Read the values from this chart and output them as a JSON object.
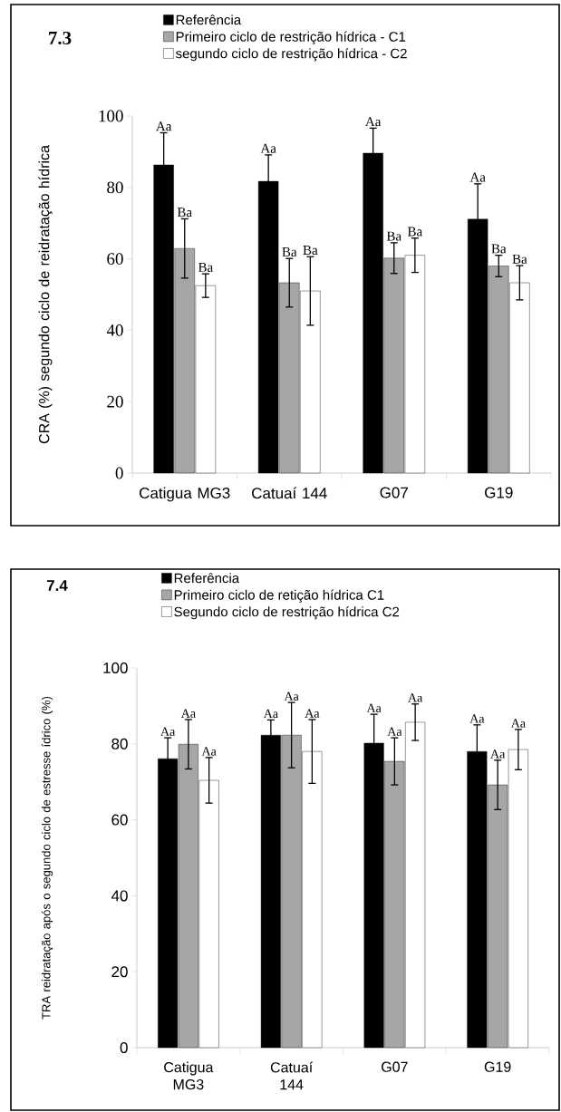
{
  "chart_data": [
    {
      "type": "bar",
      "title": "7.3",
      "ylabel": "CRA (%)  segundo ciclo de  reidratação hídrica",
      "categories": [
        "Catigua MG3",
        "Catuaí 144",
        "G07",
        "G19"
      ],
      "ylim": [
        0,
        100
      ],
      "yticks": [
        0,
        20,
        40,
        60,
        80,
        100
      ],
      "legend": "top",
      "series": [
        {
          "name": "Referência",
          "color": "#000000",
          "values": [
            86.3,
            81.7,
            89.6,
            71.1
          ],
          "errors": [
            9,
            7.4,
            7,
            9.9
          ],
          "value_labels": [
            "Aa",
            "Aa",
            "Aa",
            "Aa"
          ]
        },
        {
          "name": "Primeiro ciclo de restrição hídrica - C1",
          "color": "#a6a6a6",
          "values": [
            62.9,
            53.3,
            60.2,
            58
          ],
          "errors": [
            8.3,
            6.8,
            4.3,
            3
          ],
          "value_labels": [
            "Ba",
            "Ba",
            "Ba",
            "Ba"
          ]
        },
        {
          "name": "segundo ciclo de restrição hídrica - C2",
          "color": "#ffffff",
          "values": [
            52.5,
            51,
            61,
            53.3
          ],
          "errors": [
            3.3,
            9.6,
            4.8,
            4.8
          ],
          "value_labels": [
            "Ba",
            "Ba",
            "Ba",
            "Ba"
          ]
        }
      ]
    },
    {
      "type": "bar",
      "title": "7.4",
      "ylabel": "TRA reidratação após o segundo ciclo de estresse ídrico (%)",
      "categories": [
        "Catigua MG3",
        "Catuaí 144",
        "G07",
        "G19"
      ],
      "ylim": [
        0,
        100
      ],
      "yticks": [
        0,
        20,
        40,
        60,
        80,
        100
      ],
      "legend": "top",
      "series": [
        {
          "name": "Referência",
          "color": "#000000",
          "values": [
            76.1,
            82.3,
            80.2,
            78
          ],
          "errors": [
            5.5,
            4,
            7.6,
            7
          ],
          "value_labels": [
            "Aa",
            "Aa",
            "Aa",
            "Aa"
          ]
        },
        {
          "name": "Primeiro ciclo de retição hídrica C1",
          "color": "#a6a6a6",
          "values": [
            79.9,
            82.3,
            75.4,
            69.2
          ],
          "errors": [
            6.5,
            8.6,
            6.2,
            6.5
          ],
          "value_labels": [
            "Aa",
            "Aa",
            "Aa",
            "Aa"
          ]
        },
        {
          "name": "Segundo ciclo de restrição hídrica C2",
          "color": "#ffffff",
          "values": [
            70.4,
            78,
            85.7,
            78.5
          ],
          "errors": [
            6,
            8.4,
            4.8,
            5.3
          ],
          "value_labels": [
            "Aa",
            "Aa",
            "Aa",
            "Aa"
          ]
        }
      ]
    }
  ]
}
